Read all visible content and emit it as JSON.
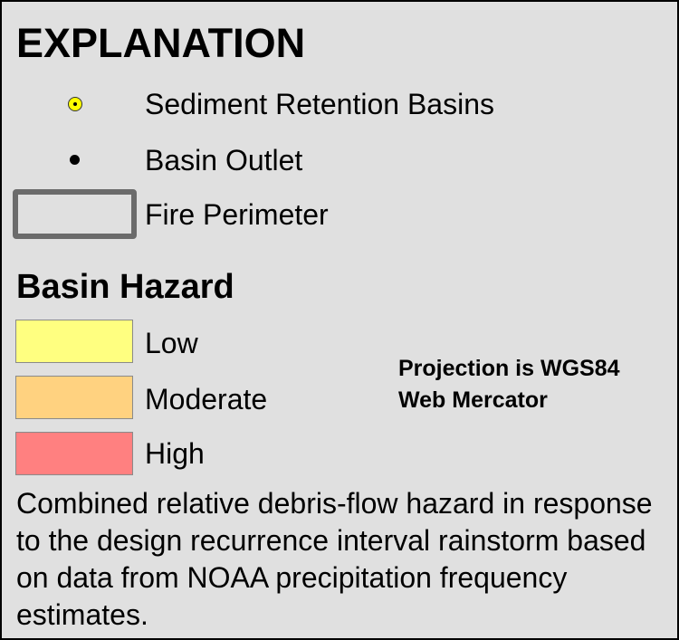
{
  "legend": {
    "title": "EXPLANATION",
    "symbols": [
      {
        "label": "Sediment Retention Basins",
        "icon": "yellow-circle-dot-icon",
        "fill": "#ffff00"
      },
      {
        "label": "Basin Outlet",
        "icon": "black-dot-icon",
        "fill": "#000000"
      },
      {
        "label": "Fire Perimeter",
        "icon": "gray-outline-rectangle-icon",
        "stroke": "#6b6b6b"
      }
    ],
    "hazard": {
      "title": "Basin Hazard",
      "classes": [
        {
          "label": "Low",
          "color": "#ffff80"
        },
        {
          "label": "Moderate",
          "color": "#ffd280"
        },
        {
          "label": "High",
          "color": "#ff8080"
        }
      ]
    },
    "projection": "Projection is WGS84 Web Mercator",
    "description": "Combined relative debris-flow hazard in response to the design recurrence interval rainstorm based on data from NOAA precipitation frequency estimates."
  }
}
